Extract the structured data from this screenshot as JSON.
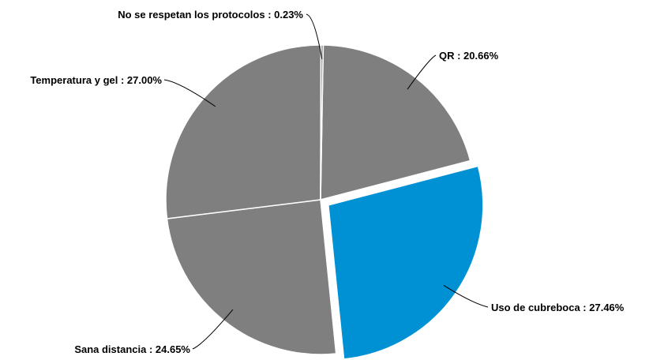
{
  "chart_data": {
    "type": "pie",
    "title": "",
    "legend": "none",
    "colors": {
      "default": "#7f7f7f",
      "highlight": "#0091d5"
    },
    "slices": [
      {
        "name": "QR",
        "value": 20.66,
        "label": "QR : 20.66%",
        "exploded": false
      },
      {
        "name": "Uso de cubreboca",
        "value": 27.46,
        "label": "Uso de cubreboca : 27.46%",
        "exploded": true
      },
      {
        "name": "Sana distancia",
        "value": 24.65,
        "label": "Sana distancia : 24.65%",
        "exploded": false
      },
      {
        "name": "Temperatura y gel",
        "value": 27.0,
        "label": "Temperatura y gel : 27.00%",
        "exploded": false
      },
      {
        "name": "No se respetan los protocolos",
        "value": 0.23,
        "label": "No se respetan los protocolos : 0.23%",
        "exploded": false
      }
    ]
  }
}
